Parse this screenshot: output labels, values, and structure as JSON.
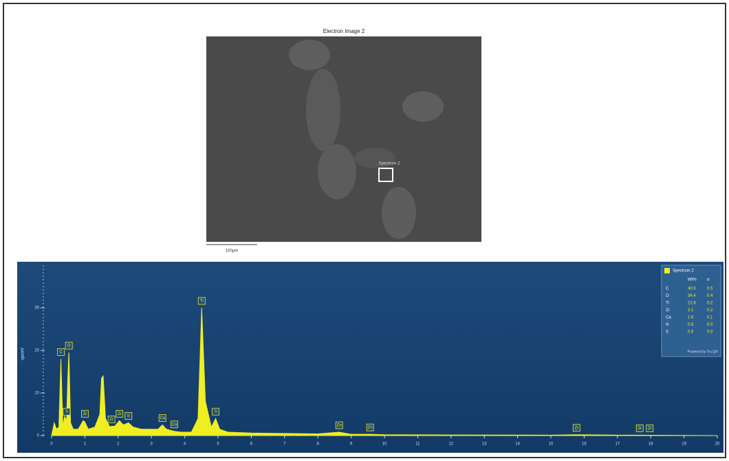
{
  "image": {
    "title": "Electron Image 2",
    "region_label": "Spectrum 2",
    "scale_label": "100µm"
  },
  "chart_data": {
    "type": "area",
    "y_label": "cps/eV",
    "color": "#eeee22",
    "x": [
      0,
      0.08,
      0.15,
      0.22,
      0.28,
      0.34,
      0.39,
      0.45,
      0.49,
      0.52,
      0.57,
      0.65,
      0.8,
      0.95,
      1.0,
      1.1,
      1.3,
      1.45,
      1.5,
      1.55,
      1.62,
      1.75,
      1.8,
      1.9,
      2.04,
      2.15,
      2.31,
      2.45,
      2.7,
      3.0,
      3.2,
      3.33,
      3.45,
      3.69,
      3.9,
      4.2,
      4.4,
      4.51,
      4.62,
      4.8,
      4.93,
      5.05,
      5.3,
      6,
      7,
      8,
      8.64,
      9,
      9.57,
      10,
      12,
      15,
      15.77,
      17,
      17.67,
      20
    ],
    "values": [
      0,
      3,
      1.5,
      2,
      18,
      2,
      4.5,
      3.5,
      14,
      19.5,
      3,
      1.5,
      1.5,
      3.5,
      3.2,
      1.5,
      2,
      5,
      13.5,
      14,
      4,
      2,
      2.2,
      2.2,
      3.5,
      2.5,
      3,
      2,
      1.5,
      1.5,
      1.5,
      2.5,
      1.5,
      1,
      0.8,
      0.8,
      4,
      30,
      8,
      2,
      4,
      1.5,
      0.8,
      0.6,
      0.5,
      0.4,
      0.8,
      0.3,
      0.3,
      0.2,
      0.15,
      0.1,
      0.2,
      0.1,
      0.1,
      0
    ],
    "xlim": [
      0,
      20
    ],
    "xticks": [
      0,
      1,
      2,
      3,
      4,
      5,
      6,
      7,
      8,
      9,
      10,
      11,
      12,
      13,
      14,
      15,
      16,
      17,
      18,
      19,
      20
    ],
    "ylim": [
      0,
      40
    ],
    "yticks": [
      0,
      10,
      20,
      30
    ],
    "annotations": [
      {
        "label": "C",
        "x": 0.28,
        "y": 18
      },
      {
        "label": "O",
        "x": 0.52,
        "y": 19.5
      },
      {
        "label": "Ti",
        "x": 0.45,
        "y": 4
      },
      {
        "label": "Zr",
        "x": 1.0,
        "y": 3.5
      },
      {
        "label": "Zr",
        "x": 1.8,
        "y": 2.2
      },
      {
        "label": "Zr",
        "x": 2.04,
        "y": 3.5
      },
      {
        "label": "S",
        "x": 2.31,
        "y": 3
      },
      {
        "label": "Ca",
        "x": 3.33,
        "y": 2.5
      },
      {
        "label": "Ca",
        "x": 3.69,
        "y": 1
      },
      {
        "label": "Ti",
        "x": 4.51,
        "y": 30
      },
      {
        "label": "Ti",
        "x": 4.93,
        "y": 4
      },
      {
        "label": "Zn",
        "x": 8.64,
        "y": 0.8
      },
      {
        "label": "Zn",
        "x": 9.57,
        "y": 0.3
      },
      {
        "label": "Zr",
        "x": 15.77,
        "y": 0.2
      },
      {
        "label": "Zr",
        "x": 17.67,
        "y": 0.1
      },
      {
        "label": "Zr",
        "x": 17.97,
        "y": 0.1
      }
    ],
    "legend": {
      "title": "Spectrum 2",
      "headers": [
        "Wt%",
        "σ"
      ],
      "rows": [
        [
          "C",
          "40.5",
          "0.5"
        ],
        [
          "O",
          "34.4",
          "0.4"
        ],
        [
          "Ti",
          "21.8",
          "0.2"
        ],
        [
          "Zr",
          "2.1",
          "0.2"
        ],
        [
          "Ca",
          "1.6",
          "0.1"
        ],
        [
          "N",
          "0.8",
          "0.0"
        ],
        [
          "S",
          "0.5",
          "0.0"
        ]
      ],
      "footer": "Powered by Tru-Q®"
    }
  }
}
